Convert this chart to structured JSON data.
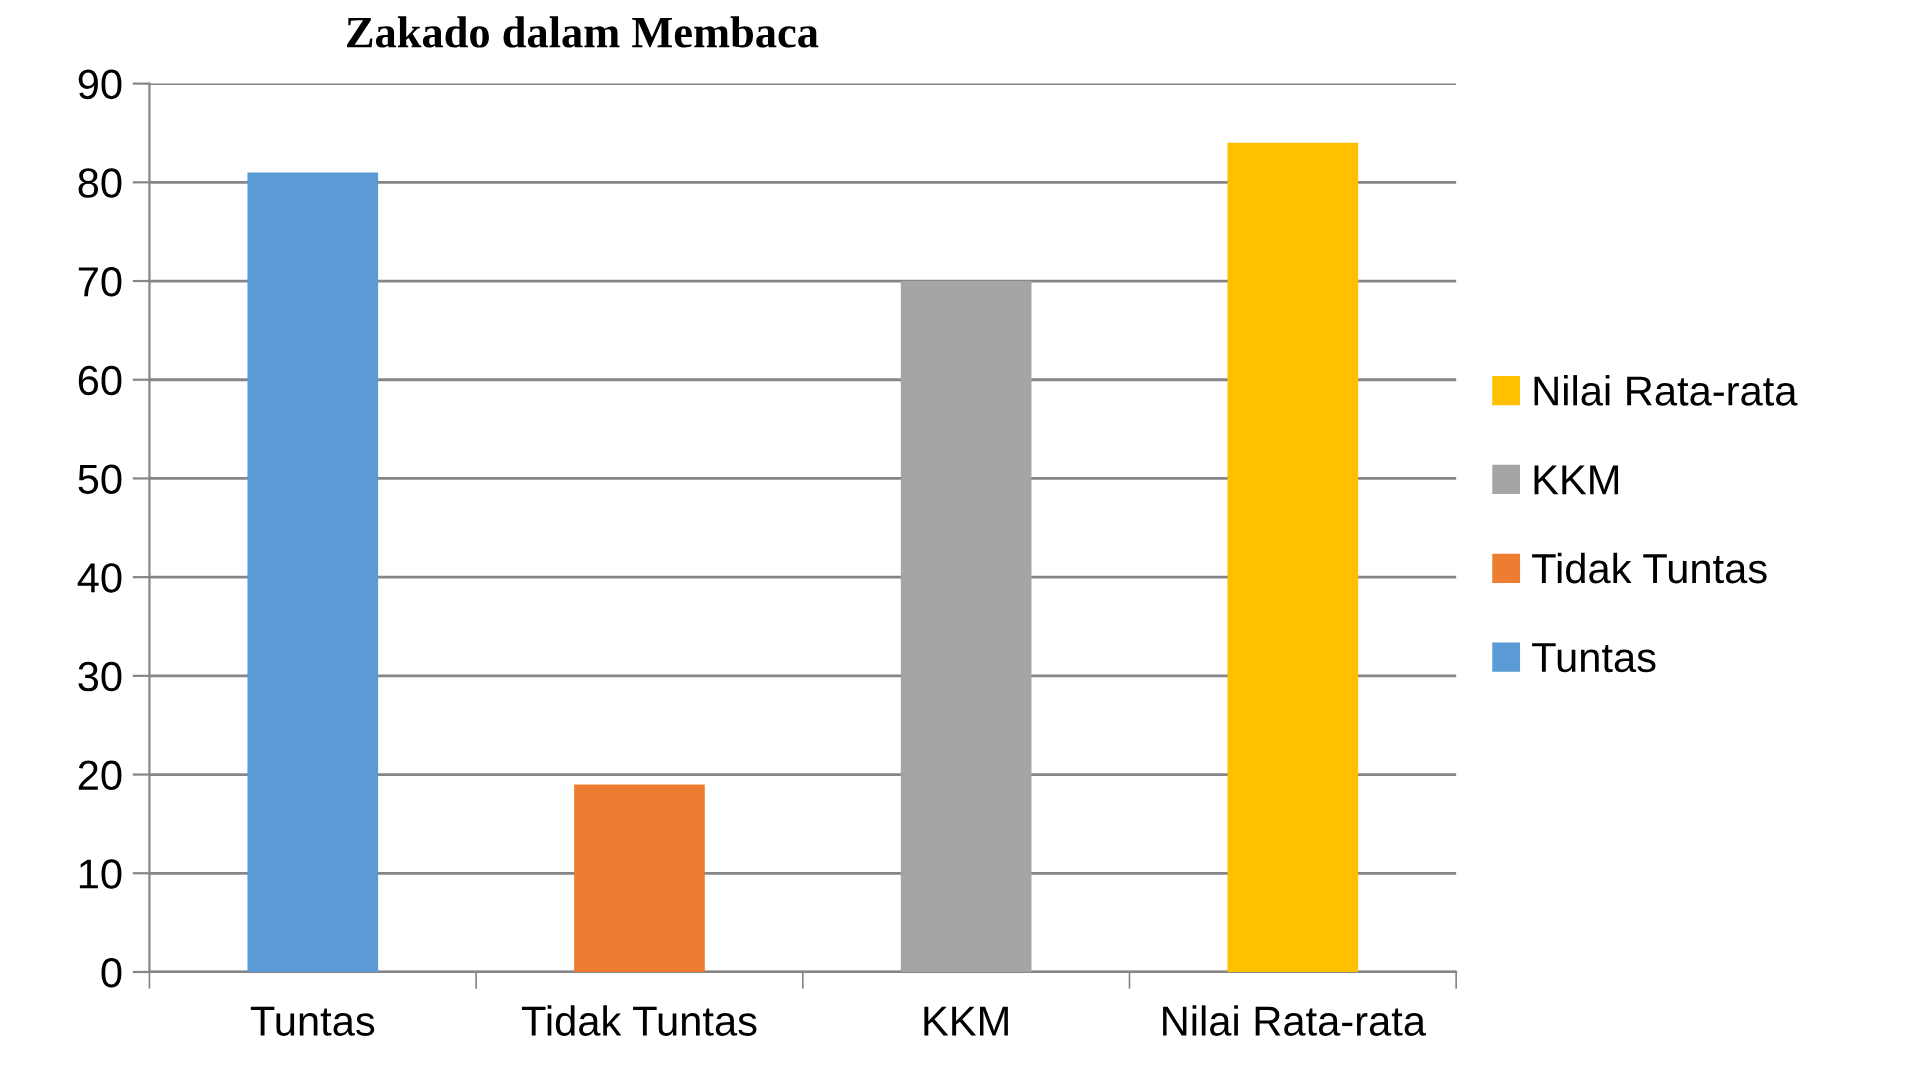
{
  "chart_data": {
    "type": "bar",
    "title": "Zakado dalam Membaca",
    "categories": [
      "Tuntas",
      "Tidak Tuntas",
      "KKM",
      "Nilai Rata-rata"
    ],
    "series": [
      {
        "name": "Tuntas",
        "color": "#5b9bd5",
        "values": [
          81,
          null,
          null,
          null
        ]
      },
      {
        "name": "Tidak Tuntas",
        "color": "#ed7d31",
        "values": [
          null,
          19,
          null,
          null
        ]
      },
      {
        "name": "KKM",
        "color": "#a5a5a5",
        "values": [
          null,
          null,
          70,
          null
        ]
      },
      {
        "name": "Nilai Rata-rata",
        "color": "#ffc000",
        "values": [
          null,
          null,
          null,
          84
        ]
      }
    ],
    "ylim": [
      0,
      90
    ],
    "yticks": [
      0,
      10,
      20,
      30,
      40,
      50,
      60,
      70,
      80,
      90
    ],
    "grid": "y",
    "legend": "right"
  }
}
